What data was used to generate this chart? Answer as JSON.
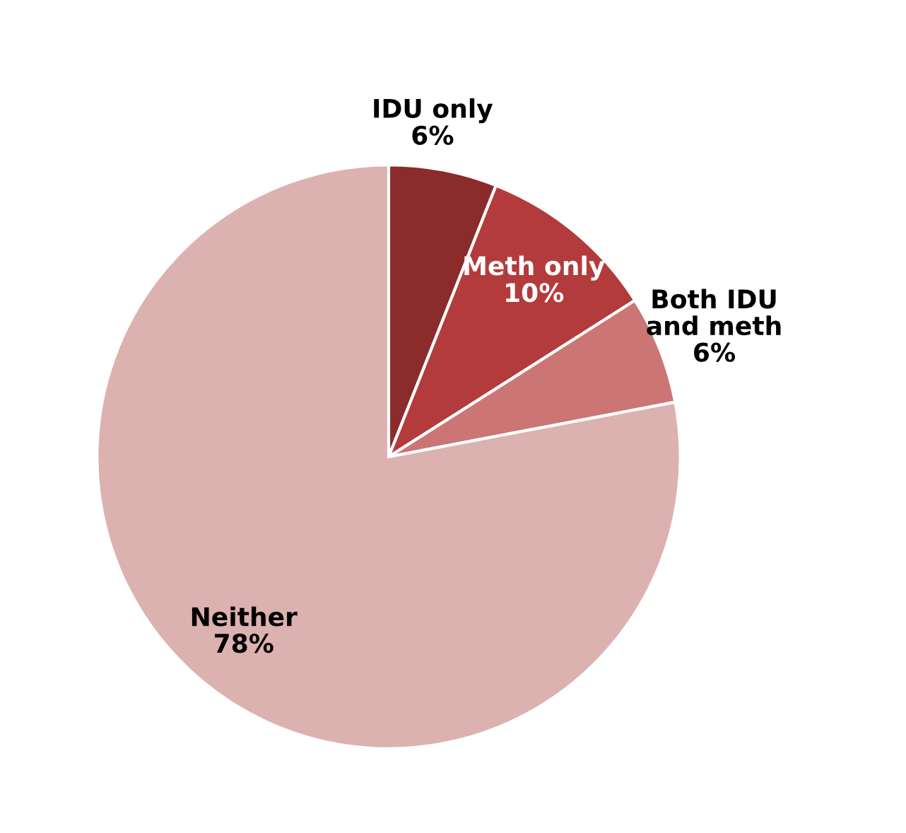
{
  "chart_data": {
    "type": "pie",
    "categories": [
      "IDU only",
      "Meth only",
      "Both IDU\nand meth",
      "Neither"
    ],
    "values": [
      6,
      10,
      6,
      78
    ],
    "value_labels": [
      "6%",
      "10%",
      "6%",
      "78%"
    ],
    "colors": [
      "#8b2b2b",
      "#b43b3b",
      "#cc7575",
      "#dcb2b1"
    ],
    "legend": false
  }
}
